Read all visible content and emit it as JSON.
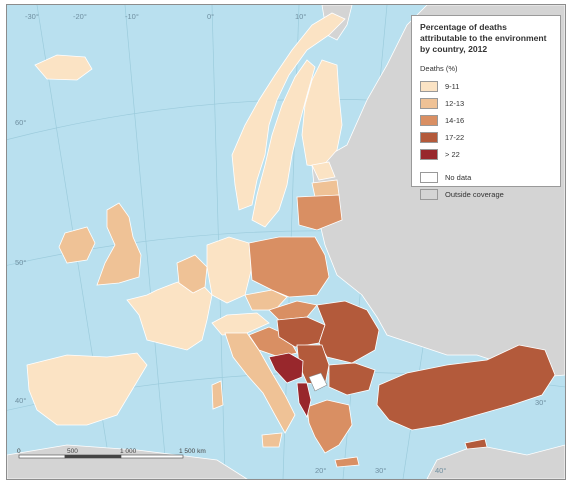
{
  "legend": {
    "title": "Percentage of deaths attributable to the environment by country, 2012",
    "subtitle": "Deaths (%)",
    "classes": [
      {
        "label": "9-11",
        "color": "#fbe3c4"
      },
      {
        "label": "12-13",
        "color": "#efc296"
      },
      {
        "label": "14-16",
        "color": "#d98f63"
      },
      {
        "label": "17-22",
        "color": "#b35a3b"
      },
      {
        "label": "> 22",
        "color": "#98272c"
      }
    ],
    "extra": [
      {
        "label": "No data",
        "color": "#ffffff"
      },
      {
        "label": "Outside coverage",
        "color": "#d4d4d4"
      }
    ]
  },
  "scale_bar": {
    "labels": [
      "0",
      "500",
      "1 000",
      "1 500 km"
    ]
  },
  "graticule": {
    "lat_labels": [
      "60°",
      "50°",
      "40°",
      "30°"
    ],
    "lon_labels": [
      "-30°",
      "-20°",
      "-10°",
      "0°",
      "10°",
      "20°",
      "30°",
      "40°"
    ]
  },
  "colors": {
    "sea": "#b9e0ef",
    "outside": "#d4d4d4",
    "border": "#ffffff"
  }
}
